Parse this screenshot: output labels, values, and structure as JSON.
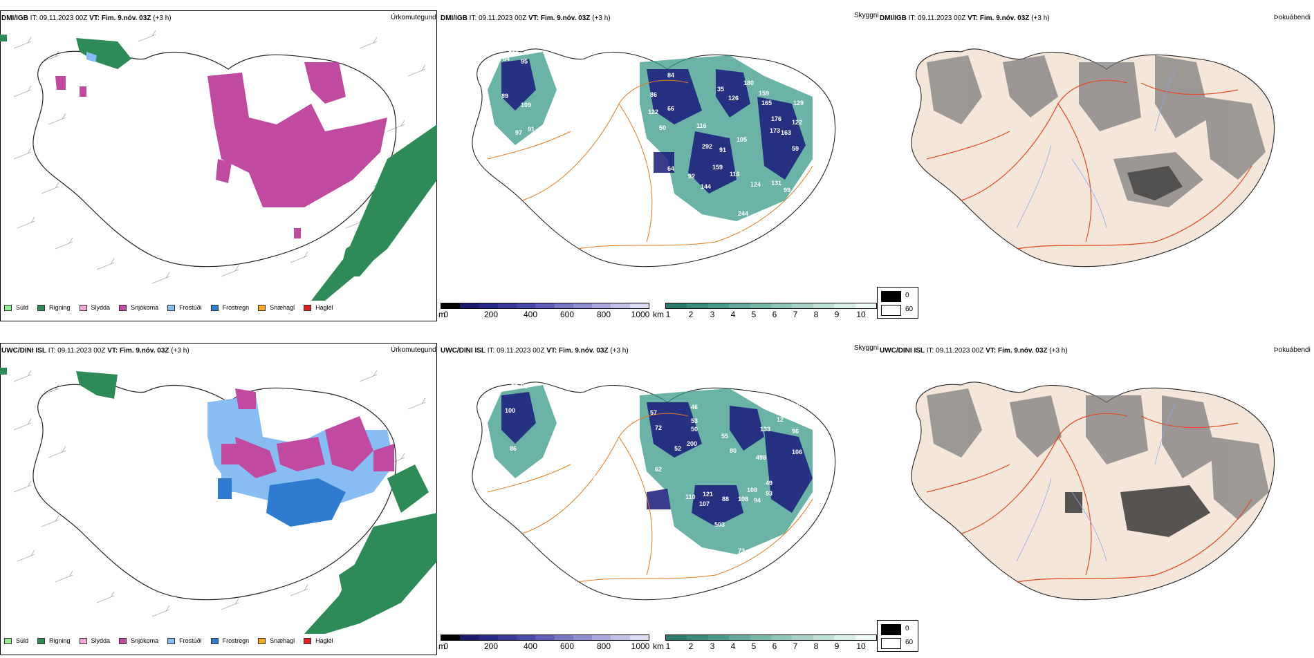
{
  "panels": {
    "precip": {
      "model": "DMI/IGB",
      "it_label": "IT:",
      "it_value": "09.11.2023 00Z",
      "vt_label": "VT: Fim. 9.nóv. 03Z",
      "lead": "(+3 h)",
      "title": "Úrkomutegund"
    },
    "precip2": {
      "model": "UWC/DINI ISL",
      "it_label": "IT:",
      "it_value": "09.11.2023 00Z",
      "vt_label": "VT: Fim. 9.nóv. 03Z",
      "lead": "(+3 h)",
      "title": "Úrkomutegund"
    },
    "cloud": {
      "model": "DMI/IGB",
      "it_label": "IT:",
      "it_value": "09.11.2023 00Z",
      "vt_label": "VT: Fim. 9.nóv. 03Z",
      "lead": "(+3 h)",
      "title": "Skyggni"
    },
    "cloud2": {
      "model": "UWC/DINI ISL",
      "it_label": "IT:",
      "it_value": "09.11.2023 00Z",
      "vt_label": "VT: Fim. 9.nóv. 03Z",
      "lead": "(+3 h)",
      "title": "Skyggni"
    },
    "fog": {
      "model": "DMI/IGB",
      "it_label": "IT:",
      "it_value": "09.11.2023 00Z",
      "vt_label": "VT: Fim. 9.nóv. 03Z",
      "lead": "(+3 h)",
      "title": "Þokuábendi"
    },
    "fog2": {
      "model": "UWC/DINI ISL",
      "it_label": "IT:",
      "it_value": "09.11.2023 00Z",
      "vt_label": "VT: Fim. 9.nóv. 03Z",
      "lead": "(+3 h)",
      "title": "Þokuábendi"
    }
  },
  "precip_legend": [
    {
      "label": "Súld",
      "color": "#90ee90"
    },
    {
      "label": "Rigning",
      "color": "#2e8b57"
    },
    {
      "label": "Slydda",
      "color": "#f4a6d7"
    },
    {
      "label": "Snjókoma",
      "color": "#c04aa0"
    },
    {
      "label": "Frostúði",
      "color": "#87bdf2"
    },
    {
      "label": "Frostregn",
      "color": "#2e7bd0"
    },
    {
      "label": "Snæhagl",
      "color": "#f5a623"
    },
    {
      "label": "Haglél",
      "color": "#e02020"
    }
  ],
  "ceiling_bar": {
    "unit": "m",
    "ticks": [
      "0",
      "200",
      "400",
      "600",
      "800",
      "1000"
    ]
  },
  "visibility_bar": {
    "unit": "km",
    "ticks": [
      "1",
      "2",
      "3",
      "4",
      "5",
      "6",
      "7",
      "8",
      "9",
      "10"
    ]
  },
  "fog_legend": {
    "high": "0",
    "low": "60"
  },
  "cloud_labels_top": [
    "108",
    "64",
    "95",
    "89",
    "109",
    "91",
    "97",
    "102",
    "86",
    "107",
    "126",
    "86",
    "84",
    "86",
    "122",
    "66",
    "50",
    "12",
    "180",
    "35",
    "159",
    "126",
    "165",
    "105",
    "116",
    "91",
    "292",
    "92",
    "64",
    "144",
    "159",
    "116",
    "124",
    "131",
    "99",
    "176",
    "173",
    "163",
    "59",
    "97",
    "122",
    "106",
    "244",
    "61",
    "10",
    "67",
    "129"
  ],
  "cloud_labels_bottom": [
    "33",
    "56",
    "100",
    "86",
    "58",
    "100",
    "57",
    "72",
    "52",
    "200",
    "46",
    "53",
    "50",
    "16",
    "82",
    "12",
    "133",
    "93",
    "96",
    "106",
    "108",
    "55",
    "80",
    "498",
    "49",
    "62",
    "110",
    "121",
    "107",
    "88",
    "108",
    "94",
    "93",
    "503",
    "73",
    "205"
  ],
  "colors": {
    "precip_rain": "#2e8b57",
    "precip_snow": "#c04aa0",
    "precip_frz": "#2e7bd0",
    "ceiling_dark": "#1a1a7a",
    "visibility": "#3a9a8a",
    "roads": "#e07a20",
    "rivers": "#8aa8f0",
    "land_fog": "#f5e6da"
  }
}
